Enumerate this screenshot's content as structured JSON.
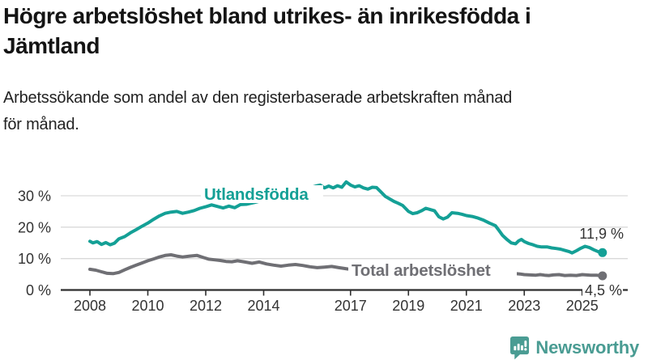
{
  "header": {
    "title_line1": "Högre arbetslöshet bland utrikes- än inrikesfödda i",
    "title_line2": "Jämtland",
    "subtitle_line1": "Arbetssökande som andel av den registerbaserade arbetskraften månad",
    "subtitle_line2": "för månad."
  },
  "colors": {
    "accent_teal": "#14a096",
    "series_gray": "#6f6f74",
    "grid": "#d9d9d9",
    "axis": "#2e2e2e",
    "axis_text": "#333333",
    "value_label_text": "#333333",
    "logo_teal": "#4a9c93",
    "background": "#ffffff"
  },
  "logo": {
    "text": "Newsworthy",
    "icon": "bar-chart-speech-bubble"
  },
  "chart_data": {
    "type": "line",
    "title": "Högre arbetslöshet bland utrikes- än inrikesfödda i Jämtland",
    "subtitle": "Arbetssökande som andel av den registerbaserade arbetskraften månad för månad.",
    "unit": "%",
    "grid": "horizontal",
    "legend_position": "inline-labels",
    "xlim": [
      2007.9,
      2025.9
    ],
    "ylim": [
      0,
      36
    ],
    "x_ticks": [
      {
        "year": 2008,
        "label": "2008"
      },
      {
        "year": 2010,
        "label": "2010"
      },
      {
        "year": 2012,
        "label": "2012"
      },
      {
        "year": 2014,
        "label": "2014"
      },
      {
        "year": 2017,
        "label": "2017"
      },
      {
        "year": 2019,
        "label": "2019"
      },
      {
        "year": 2021,
        "label": "2021"
      },
      {
        "year": 2023,
        "label": "2023"
      },
      {
        "year": 2025,
        "label": "2025"
      }
    ],
    "y_ticks": [
      {
        "value": 0,
        "label": "0 %"
      },
      {
        "value": 10,
        "label": "10 %"
      },
      {
        "value": 20,
        "label": "20 %"
      },
      {
        "value": 30,
        "label": "30 %"
      }
    ],
    "series": [
      {
        "id": "utlandsfodda",
        "name": "Utlandsfödda",
        "color": "#14a096",
        "end_value": 11.9,
        "end_label": "11,9 %",
        "points": [
          [
            2008.0,
            15.5
          ],
          [
            2008.1,
            15.0
          ],
          [
            2008.25,
            15.4
          ],
          [
            2008.4,
            14.5
          ],
          [
            2008.55,
            15.1
          ],
          [
            2008.7,
            14.4
          ],
          [
            2008.85,
            14.9
          ],
          [
            2009.0,
            16.3
          ],
          [
            2009.2,
            17.0
          ],
          [
            2009.4,
            18.2
          ],
          [
            2009.6,
            19.2
          ],
          [
            2009.8,
            20.3
          ],
          [
            2010.0,
            21.3
          ],
          [
            2010.2,
            22.5
          ],
          [
            2010.4,
            23.6
          ],
          [
            2010.6,
            24.4
          ],
          [
            2010.8,
            24.8
          ],
          [
            2011.0,
            25.0
          ],
          [
            2011.2,
            24.4
          ],
          [
            2011.4,
            24.8
          ],
          [
            2011.6,
            25.3
          ],
          [
            2011.8,
            26.0
          ],
          [
            2012.0,
            26.5
          ],
          [
            2012.2,
            27.1
          ],
          [
            2012.4,
            26.6
          ],
          [
            2012.6,
            26.1
          ],
          [
            2012.8,
            26.7
          ],
          [
            2013.0,
            26.2
          ],
          [
            2013.2,
            27.2
          ],
          [
            2013.4,
            27.3
          ],
          [
            2013.7,
            27.9
          ],
          [
            2014.0,
            28.6
          ],
          [
            2014.3,
            29.3
          ],
          [
            2014.6,
            30.1
          ],
          [
            2014.9,
            30.9
          ],
          [
            2015.2,
            31.7
          ],
          [
            2015.5,
            32.3
          ],
          [
            2015.8,
            33.1
          ],
          [
            2015.95,
            33.4
          ],
          [
            2016.1,
            32.5
          ],
          [
            2016.25,
            33.1
          ],
          [
            2016.4,
            32.5
          ],
          [
            2016.55,
            33.2
          ],
          [
            2016.7,
            32.7
          ],
          [
            2016.85,
            34.4
          ],
          [
            2017.0,
            33.4
          ],
          [
            2017.15,
            32.8
          ],
          [
            2017.3,
            33.2
          ],
          [
            2017.45,
            32.5
          ],
          [
            2017.6,
            32.1
          ],
          [
            2017.75,
            32.7
          ],
          [
            2017.9,
            32.6
          ],
          [
            2018.05,
            31.2
          ],
          [
            2018.2,
            29.8
          ],
          [
            2018.35,
            29.0
          ],
          [
            2018.5,
            28.2
          ],
          [
            2018.65,
            27.6
          ],
          [
            2018.8,
            26.9
          ],
          [
            2019.0,
            25.0
          ],
          [
            2019.15,
            24.3
          ],
          [
            2019.3,
            24.6
          ],
          [
            2019.45,
            25.2
          ],
          [
            2019.6,
            26.0
          ],
          [
            2019.75,
            25.6
          ],
          [
            2019.9,
            25.2
          ],
          [
            2020.05,
            23.3
          ],
          [
            2020.2,
            22.6
          ],
          [
            2020.35,
            23.2
          ],
          [
            2020.5,
            24.6
          ],
          [
            2020.7,
            24.4
          ],
          [
            2020.85,
            24.1
          ],
          [
            2021.0,
            23.7
          ],
          [
            2021.2,
            23.4
          ],
          [
            2021.4,
            22.9
          ],
          [
            2021.6,
            22.2
          ],
          [
            2021.8,
            21.3
          ],
          [
            2022.0,
            20.5
          ],
          [
            2022.1,
            19.3
          ],
          [
            2022.25,
            17.4
          ],
          [
            2022.4,
            16.1
          ],
          [
            2022.55,
            15.0
          ],
          [
            2022.7,
            14.7
          ],
          [
            2022.8,
            15.6
          ],
          [
            2022.9,
            16.1
          ],
          [
            2023.0,
            15.4
          ],
          [
            2023.15,
            14.8
          ],
          [
            2023.3,
            14.4
          ],
          [
            2023.45,
            13.9
          ],
          [
            2023.6,
            13.7
          ],
          [
            2023.8,
            13.7
          ],
          [
            2023.95,
            13.4
          ],
          [
            2024.1,
            13.2
          ],
          [
            2024.25,
            13.0
          ],
          [
            2024.4,
            12.6
          ],
          [
            2024.55,
            12.2
          ],
          [
            2024.65,
            11.8
          ],
          [
            2024.8,
            12.5
          ],
          [
            2024.95,
            13.3
          ],
          [
            2025.1,
            13.9
          ],
          [
            2025.25,
            13.5
          ],
          [
            2025.4,
            12.8
          ],
          [
            2025.55,
            12.2
          ],
          [
            2025.7,
            11.9
          ]
        ]
      },
      {
        "id": "total",
        "name": "Total arbetslöshet",
        "color": "#6f6f74",
        "end_value": 4.5,
        "end_label": "4,5 %",
        "points": [
          [
            2008.0,
            6.6
          ],
          [
            2008.2,
            6.3
          ],
          [
            2008.4,
            5.8
          ],
          [
            2008.6,
            5.3
          ],
          [
            2008.8,
            5.2
          ],
          [
            2009.0,
            5.6
          ],
          [
            2009.2,
            6.4
          ],
          [
            2009.4,
            7.2
          ],
          [
            2009.6,
            7.9
          ],
          [
            2009.8,
            8.6
          ],
          [
            2010.0,
            9.3
          ],
          [
            2010.2,
            9.9
          ],
          [
            2010.4,
            10.5
          ],
          [
            2010.6,
            11.0
          ],
          [
            2010.8,
            11.2
          ],
          [
            2011.0,
            10.8
          ],
          [
            2011.2,
            10.5
          ],
          [
            2011.45,
            10.8
          ],
          [
            2011.7,
            11.0
          ],
          [
            2011.9,
            10.4
          ],
          [
            2012.1,
            9.8
          ],
          [
            2012.3,
            9.6
          ],
          [
            2012.5,
            9.4
          ],
          [
            2012.7,
            9.1
          ],
          [
            2012.9,
            9.0
          ],
          [
            2013.1,
            9.3
          ],
          [
            2013.35,
            8.9
          ],
          [
            2013.6,
            8.5
          ],
          [
            2013.85,
            8.9
          ],
          [
            2014.1,
            8.3
          ],
          [
            2014.35,
            7.9
          ],
          [
            2014.6,
            7.6
          ],
          [
            2014.85,
            7.9
          ],
          [
            2015.1,
            8.1
          ],
          [
            2015.35,
            7.8
          ],
          [
            2015.6,
            7.4
          ],
          [
            2015.85,
            7.1
          ],
          [
            2016.1,
            7.3
          ],
          [
            2016.35,
            7.5
          ],
          [
            2016.6,
            7.1
          ],
          [
            2016.9,
            6.7
          ],
          [
            2017.2,
            6.6
          ],
          [
            2017.5,
            6.4
          ],
          [
            2017.8,
            6.2
          ],
          [
            2018.1,
            6.1
          ],
          [
            2018.4,
            6.0
          ],
          [
            2018.7,
            5.8
          ],
          [
            2019.0,
            5.7
          ],
          [
            2019.3,
            5.6
          ],
          [
            2019.6,
            5.6
          ],
          [
            2019.9,
            5.9
          ],
          [
            2020.2,
            6.3
          ],
          [
            2020.5,
            6.6
          ],
          [
            2020.8,
            6.4
          ],
          [
            2021.1,
            6.1
          ],
          [
            2021.4,
            5.9
          ],
          [
            2021.7,
            5.7
          ],
          [
            2022.0,
            5.6
          ],
          [
            2022.3,
            5.5
          ],
          [
            2022.55,
            5.4
          ],
          [
            2022.7,
            5.2
          ],
          [
            2022.85,
            5.1
          ],
          [
            2023.0,
            4.9
          ],
          [
            2023.2,
            4.8
          ],
          [
            2023.4,
            4.7
          ],
          [
            2023.55,
            4.9
          ],
          [
            2023.7,
            4.7
          ],
          [
            2023.85,
            4.6
          ],
          [
            2024.0,
            4.8
          ],
          [
            2024.2,
            4.9
          ],
          [
            2024.4,
            4.6
          ],
          [
            2024.6,
            4.7
          ],
          [
            2024.8,
            4.6
          ],
          [
            2025.0,
            4.9
          ],
          [
            2025.15,
            4.8
          ],
          [
            2025.3,
            4.7
          ],
          [
            2025.5,
            4.7
          ],
          [
            2025.7,
            4.5
          ]
        ]
      }
    ]
  }
}
